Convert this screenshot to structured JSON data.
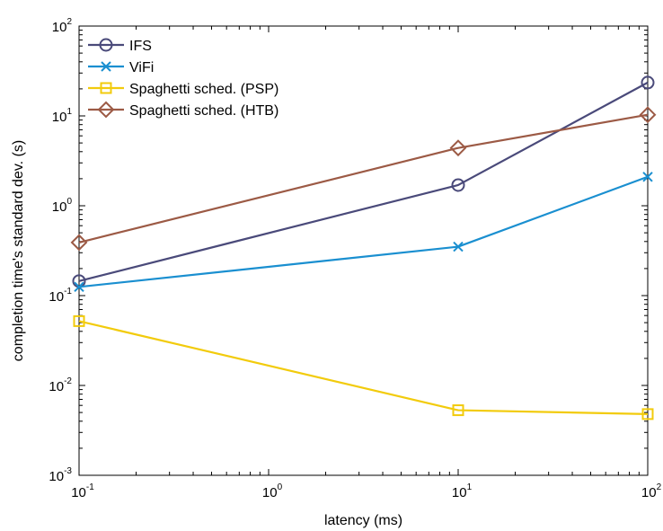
{
  "chart_data": {
    "type": "line",
    "title": "",
    "xlabel": "latency (ms)",
    "ylabel": "completion time's standard dev. (s)",
    "x_scale": "log",
    "y_scale": "log",
    "xlim": [
      0.1,
      100
    ],
    "ylim": [
      0.001,
      100
    ],
    "x_ticks": [
      {
        "value": 0.1,
        "base": "10",
        "exp": "-1"
      },
      {
        "value": 1,
        "base": "10",
        "exp": "0"
      },
      {
        "value": 10,
        "base": "10",
        "exp": "1"
      },
      {
        "value": 100,
        "base": "10",
        "exp": "2"
      }
    ],
    "y_ticks": [
      {
        "value": 0.001,
        "base": "10",
        "exp": "-3"
      },
      {
        "value": 0.01,
        "base": "10",
        "exp": "-2"
      },
      {
        "value": 0.1,
        "base": "10",
        "exp": "-1"
      },
      {
        "value": 1,
        "base": "10",
        "exp": "0"
      },
      {
        "value": 10,
        "base": "10",
        "exp": "1"
      },
      {
        "value": 100,
        "base": "10",
        "exp": "2"
      }
    ],
    "grid": false,
    "legend_position": "top-left",
    "x": [
      0.1,
      10,
      100
    ],
    "series": [
      {
        "name": "IFS",
        "values": [
          0.145,
          1.7,
          23.5
        ],
        "color": "#4a4a7a",
        "marker": "circle"
      },
      {
        "name": "ViFi",
        "values": [
          0.125,
          0.35,
          2.1
        ],
        "color": "#1a8fd0",
        "marker": "x"
      },
      {
        "name": "Spaghetti sched. (PSP)",
        "values": [
          0.052,
          0.0053,
          0.0048
        ],
        "color": "#f2cb0c",
        "marker": "square"
      },
      {
        "name": "Spaghetti sched. (HTB)",
        "values": [
          0.39,
          4.4,
          10.3
        ],
        "color": "#9c5a45",
        "marker": "diamond"
      }
    ]
  }
}
